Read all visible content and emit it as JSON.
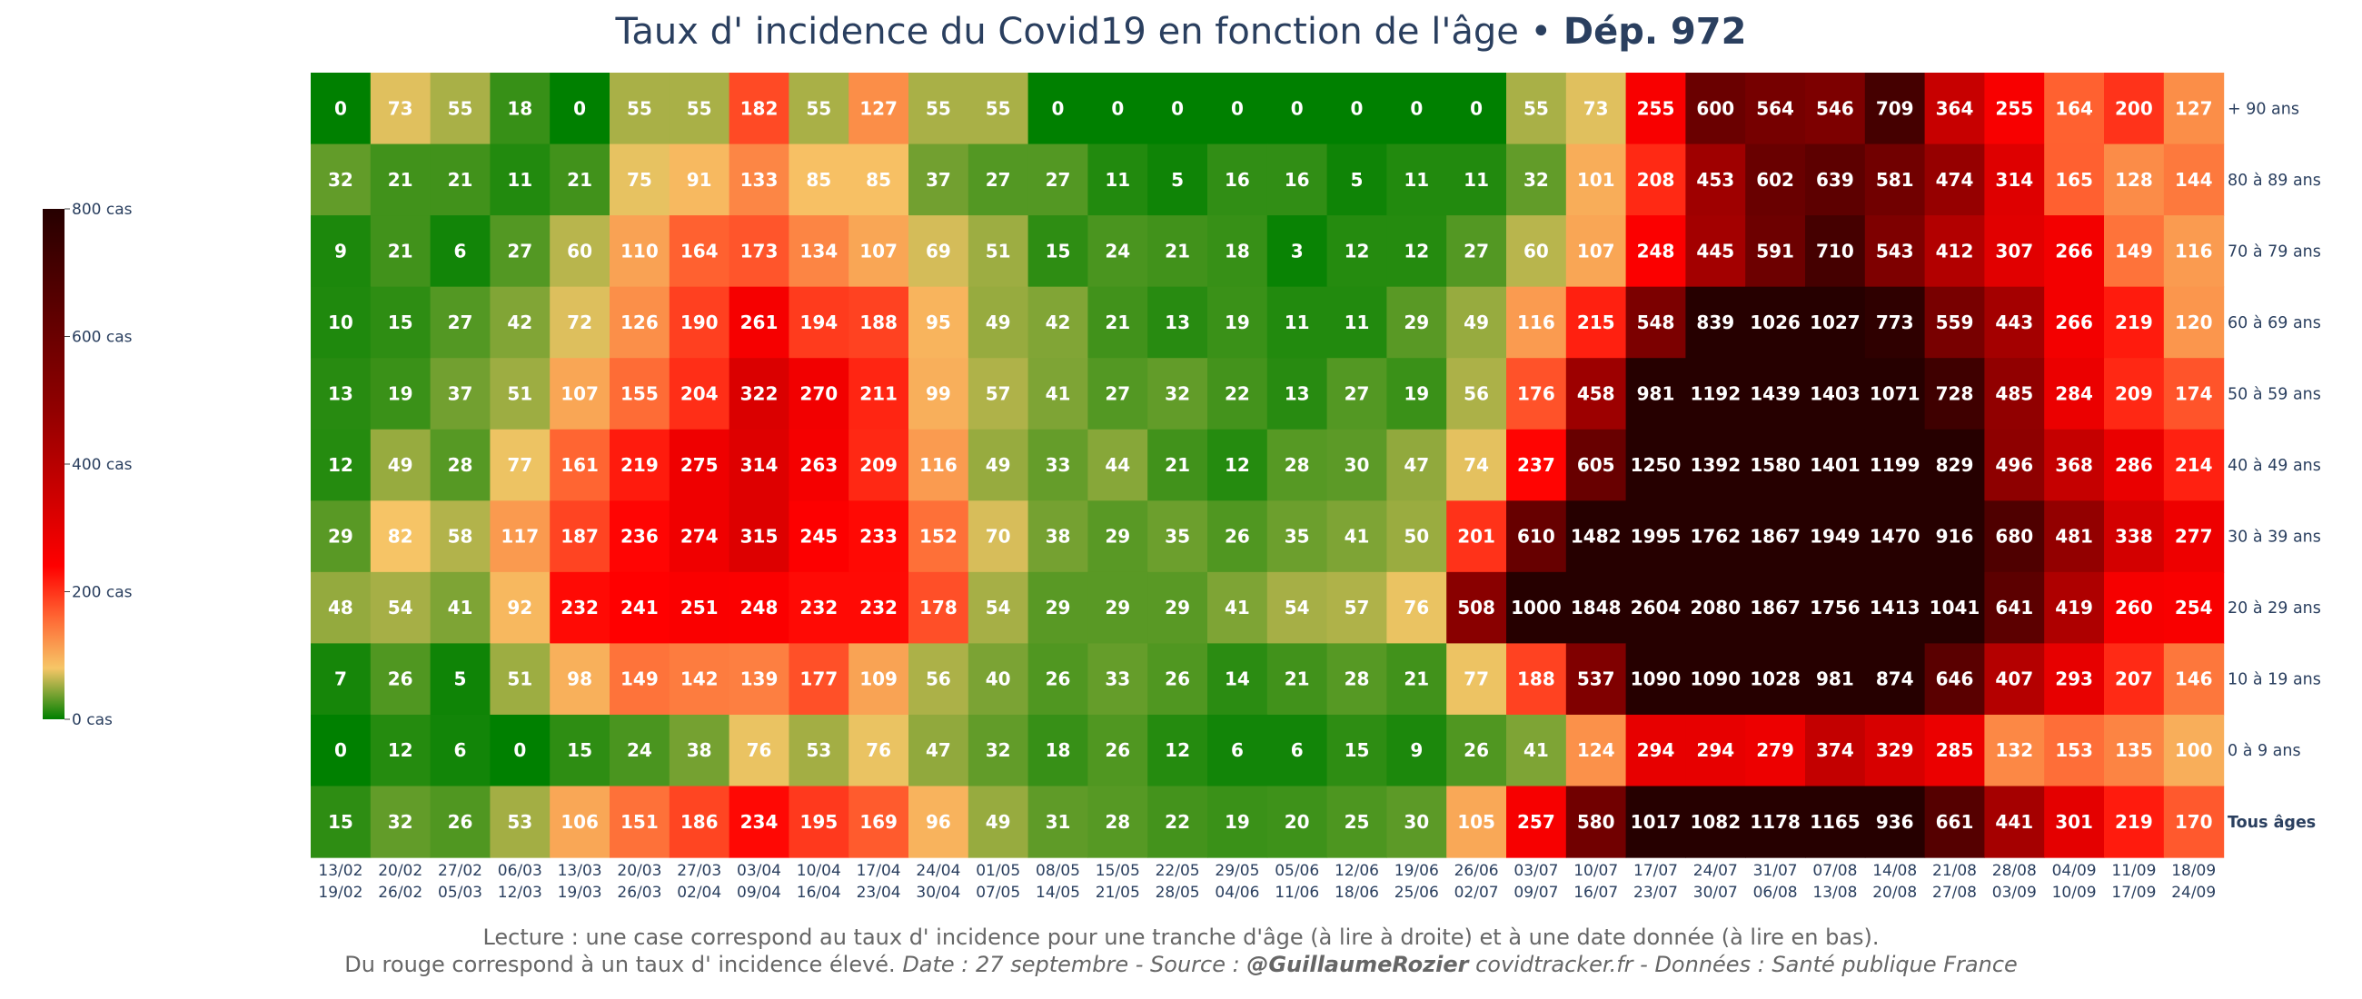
{
  "title": {
    "main": "Taux d' incidence du Covid19 en fonction de l'âge",
    "separator": " • ",
    "dept": "Dép. 972"
  },
  "footer": {
    "line1": "Lecture : une case correspond au taux d' incidence pour une tranche d'âge (à lire à droite) et à une date donnée (à lire en bas).",
    "line2_plain": "Du rouge correspond à un taux d' incidence élevé.  ",
    "line2_italic_a": "Date : 27 septembre - Source : ",
    "line2_bold": "@GuillaumeRozier",
    "line2_italic_b": " covidtracker.fr - Données : Santé publique France"
  },
  "colors": {
    "scale": [
      [
        0.0,
        "#008000"
      ],
      [
        0.1,
        "#f6c667"
      ],
      [
        0.2,
        "#ff6633"
      ],
      [
        0.3,
        "#ff0000"
      ],
      [
        0.6,
        "#930000"
      ],
      [
        1.0,
        "#260000"
      ]
    ],
    "text": "#2a3f5f"
  },
  "chart_data": {
    "type": "heatmap",
    "title": "Taux d' incidence du Covid19 en fonction de l'âge • Dép. 972",
    "zmin": 0,
    "zmax": 800,
    "colorbar": {
      "ticks": [
        0,
        200,
        400,
        600,
        800
      ],
      "labels": [
        "0 cas",
        "200 cas",
        "400 cas",
        "600 cas",
        "800 cas"
      ]
    },
    "rows": [
      "+ 90 ans",
      "80 à 89 ans",
      "70 à 79 ans",
      "60 à 69 ans",
      "50 à 59 ans",
      "40 à 49 ans",
      "30 à 39 ans",
      "20 à 29 ans",
      "10 à 19 ans",
      "0 à 9 ans",
      "Tous âges"
    ],
    "bold_row": "Tous âges",
    "columns": [
      [
        "13/02",
        "19/02"
      ],
      [
        "20/02",
        "26/02"
      ],
      [
        "27/02",
        "05/03"
      ],
      [
        "06/03",
        "12/03"
      ],
      [
        "13/03",
        "19/03"
      ],
      [
        "20/03",
        "26/03"
      ],
      [
        "27/03",
        "02/04"
      ],
      [
        "03/04",
        "09/04"
      ],
      [
        "10/04",
        "16/04"
      ],
      [
        "17/04",
        "23/04"
      ],
      [
        "24/04",
        "30/04"
      ],
      [
        "01/05",
        "07/05"
      ],
      [
        "08/05",
        "14/05"
      ],
      [
        "15/05",
        "21/05"
      ],
      [
        "22/05",
        "28/05"
      ],
      [
        "29/05",
        "04/06"
      ],
      [
        "05/06",
        "11/06"
      ],
      [
        "12/06",
        "18/06"
      ],
      [
        "19/06",
        "25/06"
      ],
      [
        "26/06",
        "02/07"
      ],
      [
        "03/07",
        "09/07"
      ],
      [
        "10/07",
        "16/07"
      ],
      [
        "17/07",
        "23/07"
      ],
      [
        "24/07",
        "30/07"
      ],
      [
        "31/07",
        "06/08"
      ],
      [
        "07/08",
        "13/08"
      ],
      [
        "14/08",
        "20/08"
      ],
      [
        "21/08",
        "27/08"
      ],
      [
        "28/08",
        "03/09"
      ],
      [
        "04/09",
        "10/09"
      ],
      [
        "11/09",
        "17/09"
      ],
      [
        "18/09",
        "24/09"
      ]
    ],
    "values": [
      [
        0,
        73,
        55,
        18,
        0,
        55,
        55,
        182,
        55,
        127,
        55,
        55,
        0,
        0,
        0,
        0,
        0,
        0,
        0,
        0,
        55,
        73,
        255,
        600,
        564,
        546,
        709,
        364,
        255,
        164,
        200,
        127
      ],
      [
        32,
        21,
        21,
        11,
        21,
        75,
        91,
        133,
        85,
        85,
        37,
        27,
        27,
        11,
        5,
        16,
        16,
        5,
        11,
        11,
        32,
        101,
        208,
        453,
        602,
        639,
        581,
        474,
        314,
        165,
        128,
        144
      ],
      [
        9,
        21,
        6,
        27,
        60,
        110,
        164,
        173,
        134,
        107,
        69,
        51,
        15,
        24,
        21,
        18,
        3,
        12,
        12,
        27,
        60,
        107,
        248,
        445,
        591,
        710,
        543,
        412,
        307,
        266,
        149,
        116
      ],
      [
        10,
        15,
        27,
        42,
        72,
        126,
        190,
        261,
        194,
        188,
        95,
        49,
        42,
        21,
        13,
        19,
        11,
        11,
        29,
        49,
        116,
        215,
        548,
        839,
        1026,
        1027,
        773,
        559,
        443,
        266,
        219,
        120
      ],
      [
        13,
        19,
        37,
        51,
        107,
        155,
        204,
        322,
        270,
        211,
        99,
        57,
        41,
        27,
        32,
        22,
        13,
        27,
        19,
        56,
        176,
        458,
        981,
        1192,
        1439,
        1403,
        1071,
        728,
        485,
        284,
        209,
        174
      ],
      [
        12,
        49,
        28,
        77,
        161,
        219,
        275,
        314,
        263,
        209,
        116,
        49,
        33,
        44,
        21,
        12,
        28,
        30,
        47,
        74,
        237,
        605,
        1250,
        1392,
        1580,
        1401,
        1199,
        829,
        496,
        368,
        286,
        214
      ],
      [
        29,
        82,
        58,
        117,
        187,
        236,
        274,
        315,
        245,
        233,
        152,
        70,
        38,
        29,
        35,
        26,
        35,
        41,
        50,
        201,
        610,
        1482,
        1995,
        1762,
        1867,
        1949,
        1470,
        916,
        680,
        481,
        338,
        277
      ],
      [
        48,
        54,
        41,
        92,
        232,
        241,
        251,
        248,
        232,
        232,
        178,
        54,
        29,
        29,
        29,
        41,
        54,
        57,
        76,
        508,
        1000,
        1848,
        2604,
        2080,
        1867,
        1756,
        1413,
        1041,
        641,
        419,
        260,
        254
      ],
      [
        7,
        26,
        5,
        51,
        98,
        149,
        142,
        139,
        177,
        109,
        56,
        40,
        26,
        33,
        26,
        14,
        21,
        28,
        21,
        77,
        188,
        537,
        1090,
        1090,
        1028,
        981,
        874,
        646,
        407,
        293,
        207,
        146
      ],
      [
        0,
        12,
        6,
        0,
        15,
        24,
        38,
        76,
        53,
        76,
        47,
        32,
        18,
        26,
        12,
        6,
        6,
        15,
        9,
        26,
        41,
        124,
        294,
        294,
        279,
        374,
        329,
        285,
        132,
        153,
        135,
        100
      ],
      [
        15,
        32,
        26,
        53,
        106,
        151,
        186,
        234,
        195,
        169,
        96,
        49,
        31,
        28,
        22,
        19,
        20,
        25,
        30,
        105,
        257,
        580,
        1017,
        1082,
        1178,
        1165,
        936,
        661,
        441,
        301,
        219,
        170
      ]
    ]
  }
}
